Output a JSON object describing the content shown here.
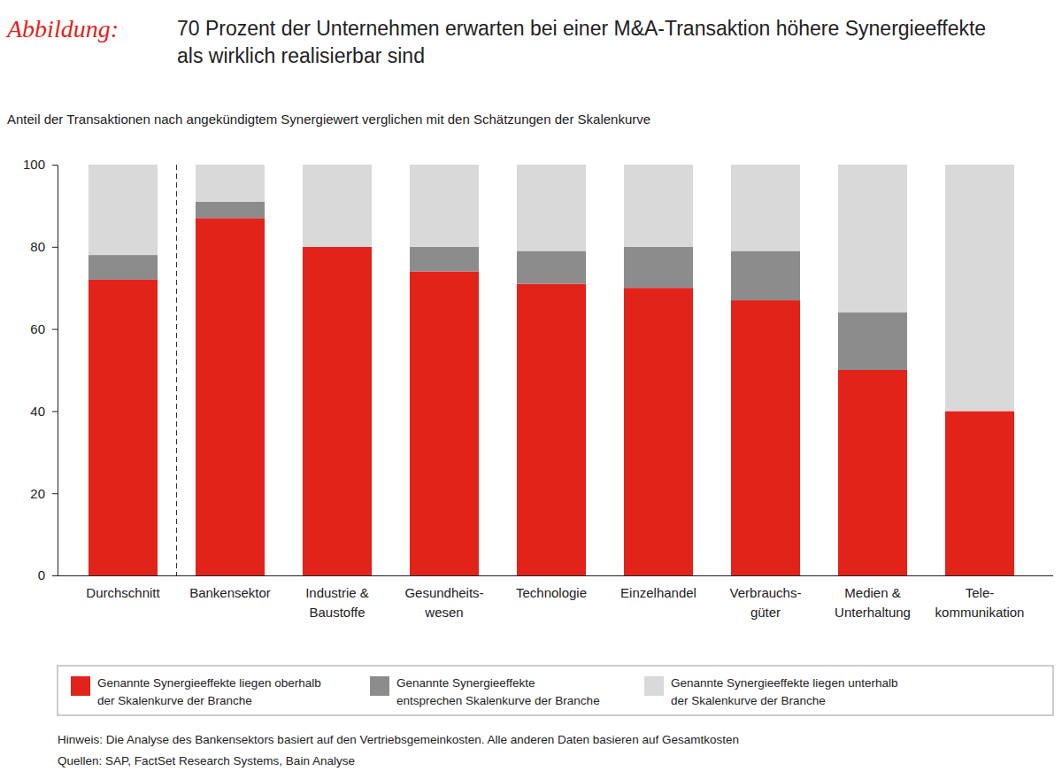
{
  "chart_data": {
    "type": "bar",
    "title_label": "Abbildung:",
    "title": "70 Prozent der Unternehmen erwarten bei einer M&A-Transaktion höhere Synergieeffekte\nals wirklich realisierbar sind",
    "subtitle": "Anteil der Transaktionen nach angekündigtem Synergiewert verglichen mit den Schätzungen der Skalenkurve",
    "categories": [
      "Durchschnitt",
      "Bankensektor",
      "Industrie &\nBaustoffe",
      "Gesundheits-\nwesen",
      "Technologie",
      "Einzelhandel",
      "Verbrauchs-\ngüter",
      "Medien &\nUnterhaltung",
      "Tele-\nkommunikation"
    ],
    "series": [
      {
        "name": "Genannte Synergieeffekte liegen oberhalb\nder Skalenkurve der Branche",
        "color": "#e2231a",
        "values": [
          72,
          87,
          80,
          74,
          71,
          70,
          67,
          50,
          40
        ]
      },
      {
        "name": "Genannte Synergieeffekte\nentsprechen Skalenkurve der Branche",
        "color": "#8c8c8c",
        "values": [
          6,
          4,
          0,
          6,
          8,
          10,
          12,
          14,
          0
        ]
      },
      {
        "name": "Genannte Synergieeffekte liegen unterhalb\nder Skalenkurve der Branche",
        "color": "#d9d9d9",
        "values": [
          22,
          9,
          20,
          20,
          21,
          20,
          21,
          36,
          60
        ]
      }
    ],
    "stacked": true,
    "ylim": [
      0,
      100
    ],
    "yticks": [
      0,
      20,
      40,
      60,
      80,
      100
    ],
    "grid": false,
    "legend": "bottom",
    "note": "Hinweis: Die Analyse des Bankensektors basiert auf den Vertriebsgemeinkosten. Alle anderen Daten basieren auf Gesamtkosten",
    "source": "Quellen: SAP, FactSet Research Systems, Bain Analyse"
  }
}
